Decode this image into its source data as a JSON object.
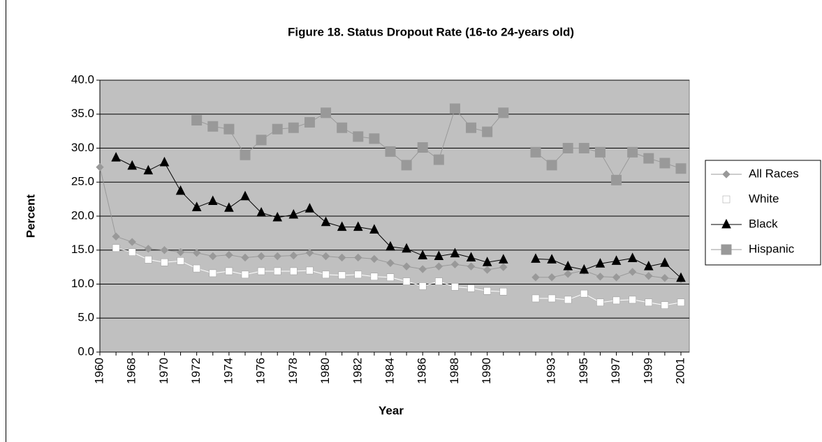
{
  "chart_data": {
    "type": "line",
    "title": "Figure 18. Status Dropout Rate (16-to 24-years old)",
    "x_label": "Year",
    "y_label": "Percent",
    "categories": [
      "1960",
      null,
      "1968",
      null,
      "1970",
      null,
      "1972",
      null,
      "1974",
      null,
      "1976",
      null,
      "1978",
      null,
      "1980",
      null,
      "1982",
      null,
      "1984",
      null,
      "1986",
      null,
      "1988",
      null,
      "1990",
      null,
      null,
      null,
      "1993",
      null,
      "1995",
      null,
      "1997",
      null,
      "1999",
      null,
      "2001"
    ],
    "series": [
      {
        "name": "All Races",
        "color": "#999999",
        "marker": "diamond",
        "values": [
          27.2,
          17.0,
          16.2,
          15.2,
          15.0,
          14.7,
          14.6,
          14.1,
          14.3,
          13.9,
          14.1,
          14.1,
          14.2,
          14.6,
          14.1,
          13.9,
          13.9,
          13.7,
          13.1,
          12.6,
          12.2,
          12.6,
          12.9,
          12.6,
          12.1,
          12.5,
          null,
          11.0,
          11.0,
          11.5,
          12.0,
          11.1,
          11.0,
          11.8,
          11.2,
          10.9,
          10.7
        ]
      },
      {
        "name": "White",
        "color": "#ffffff",
        "marker": "square",
        "values": [
          null,
          15.3,
          14.7,
          13.6,
          13.2,
          13.4,
          12.3,
          11.6,
          11.9,
          11.4,
          11.9,
          11.9,
          11.9,
          12.0,
          11.4,
          11.3,
          11.4,
          11.1,
          11.0,
          10.4,
          9.7,
          10.4,
          9.6,
          9.4,
          9.0,
          8.9,
          null,
          7.9,
          7.9,
          7.7,
          8.6,
          7.3,
          7.6,
          7.7,
          7.3,
          6.9,
          7.3
        ]
      },
      {
        "name": "Black",
        "color": "#000000",
        "marker": "triangle",
        "values": [
          null,
          28.6,
          27.4,
          26.7,
          27.9,
          23.7,
          21.3,
          22.2,
          21.2,
          22.9,
          20.5,
          19.8,
          20.2,
          21.1,
          19.1,
          18.4,
          18.4,
          18.0,
          15.5,
          15.2,
          14.2,
          14.1,
          14.5,
          13.9,
          13.2,
          13.6,
          null,
          13.7,
          13.6,
          12.6,
          12.1,
          13.0,
          13.4,
          13.8,
          12.6,
          13.1,
          10.9
        ]
      },
      {
        "name": "Hispanic",
        "color": "#999999",
        "marker": "big-square",
        "values": [
          null,
          null,
          null,
          null,
          null,
          null,
          34.1,
          33.2,
          32.8,
          29.0,
          31.2,
          32.8,
          33.0,
          33.8,
          35.2,
          33.0,
          31.7,
          31.4,
          29.5,
          27.5,
          30.1,
          28.3,
          35.8,
          33.0,
          32.4,
          35.2,
          null,
          29.4,
          27.5,
          30.0,
          30.0,
          29.4,
          25.3,
          29.4,
          28.5,
          27.8,
          27.0
        ]
      }
    ],
    "ylim": [
      0,
      40
    ],
    "yticks": [
      {
        "value": 0,
        "label": "0.0"
      },
      {
        "value": 5,
        "label": "5.0"
      },
      {
        "value": 10,
        "label": "10.0"
      },
      {
        "value": 15,
        "label": "15.0"
      },
      {
        "value": 20,
        "label": "20.0"
      },
      {
        "value": 25,
        "label": "25.0"
      },
      {
        "value": 30,
        "label": "30.0"
      },
      {
        "value": 35,
        "label": "35.0"
      },
      {
        "value": 40,
        "label": "40.0"
      }
    ],
    "grid": true,
    "legend": "right",
    "plot_background": "#c0c0c0"
  }
}
